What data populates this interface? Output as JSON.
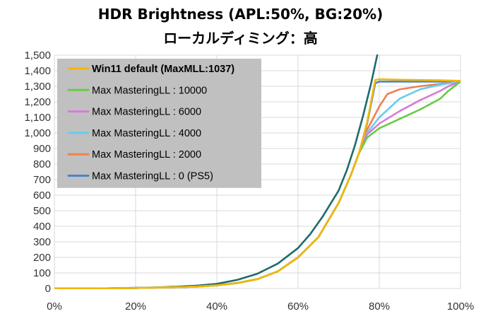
{
  "chart_data": {
    "type": "line",
    "title": "HDR Brightness (APL:50%, BG:20%)",
    "subtitle": "ローカルディミング：高",
    "xlabel": "",
    "ylabel": "",
    "xlim": [
      0,
      100
    ],
    "ylim": [
      0,
      1500
    ],
    "x_ticks": [
      "0%",
      "20%",
      "40%",
      "60%",
      "80%",
      "100%"
    ],
    "y_ticks": [
      "0",
      "100",
      "200",
      "300",
      "400",
      "500",
      "600",
      "700",
      "800",
      "900",
      "1,000",
      "1,100",
      "1,200",
      "1,300",
      "1,400",
      "1,500"
    ],
    "grid": true,
    "legend_position": "top-left",
    "series": [
      {
        "name": "Win11 default (MaxMLL:1037)",
        "color": "#F2B705",
        "bold": true,
        "x": [
          0,
          10,
          20,
          30,
          35,
          40,
          45,
          50,
          55,
          60,
          65,
          70,
          73,
          75,
          77,
          79,
          80,
          85,
          90,
          95,
          100
        ],
        "y": [
          0,
          0,
          3,
          8,
          12,
          20,
          35,
          60,
          110,
          200,
          330,
          550,
          730,
          870,
          1070,
          1340,
          1345,
          1342,
          1340,
          1338,
          1335
        ]
      },
      {
        "name": "Max MasteringLL : 10000",
        "color": "#66CC44",
        "bold": false,
        "x": [
          0,
          10,
          20,
          30,
          35,
          40,
          45,
          50,
          55,
          60,
          65,
          70,
          73,
          75,
          77,
          80,
          85,
          90,
          95,
          97,
          100
        ],
        "y": [
          0,
          0,
          3,
          8,
          12,
          20,
          35,
          60,
          110,
          200,
          330,
          550,
          730,
          870,
          970,
          1030,
          1090,
          1150,
          1220,
          1270,
          1330
        ]
      },
      {
        "name": "Max MasteringLL : 6000",
        "color": "#D67CD6",
        "bold": false,
        "x": [
          0,
          10,
          20,
          30,
          35,
          40,
          45,
          50,
          55,
          60,
          65,
          70,
          73,
          75,
          77,
          80,
          85,
          90,
          95,
          97,
          100
        ],
        "y": [
          0,
          0,
          3,
          8,
          12,
          20,
          35,
          60,
          110,
          200,
          330,
          550,
          730,
          870,
          990,
          1060,
          1140,
          1210,
          1270,
          1300,
          1330
        ]
      },
      {
        "name": "Max MasteringLL : 4000",
        "color": "#66CCF0",
        "bold": false,
        "x": [
          0,
          10,
          20,
          30,
          35,
          40,
          45,
          50,
          55,
          60,
          65,
          70,
          73,
          75,
          77,
          80,
          85,
          90,
          95,
          100
        ],
        "y": [
          0,
          0,
          3,
          8,
          12,
          20,
          35,
          60,
          110,
          200,
          330,
          550,
          730,
          870,
          1000,
          1100,
          1220,
          1280,
          1310,
          1330
        ]
      },
      {
        "name": "Max MasteringLL : 2000",
        "color": "#F08050",
        "bold": false,
        "x": [
          0,
          10,
          20,
          30,
          35,
          40,
          45,
          50,
          55,
          60,
          65,
          70,
          73,
          75,
          77,
          80,
          82,
          85,
          90,
          95,
          100
        ],
        "y": [
          0,
          0,
          3,
          8,
          12,
          20,
          35,
          60,
          110,
          200,
          330,
          550,
          730,
          870,
          1020,
          1170,
          1250,
          1280,
          1300,
          1315,
          1330
        ]
      },
      {
        "name": "Max MasteringLL : 0 (PS5)",
        "color": "#4A86C8",
        "bold": false,
        "x": [
          0,
          10,
          20,
          30,
          35,
          40,
          45,
          50,
          55,
          60,
          65,
          70,
          73,
          75,
          77,
          79,
          80,
          85,
          90,
          95,
          100
        ],
        "y": [
          0,
          0,
          3,
          8,
          12,
          20,
          35,
          60,
          110,
          200,
          330,
          550,
          730,
          870,
          1060,
          1320,
          1330,
          1330,
          1330,
          1330,
          1335
        ]
      },
      {
        "name": "",
        "color": "#1F6B6B",
        "bold": false,
        "x": [
          0,
          10,
          20,
          25,
          30,
          35,
          40,
          45,
          50,
          55,
          60,
          63,
          66,
          70,
          72,
          74,
          76,
          78,
          79.5
        ],
        "y": [
          0,
          0,
          4,
          7,
          12,
          18,
          30,
          55,
          95,
          160,
          260,
          350,
          460,
          630,
          760,
          920,
          1110,
          1320,
          1500
        ]
      }
    ]
  }
}
